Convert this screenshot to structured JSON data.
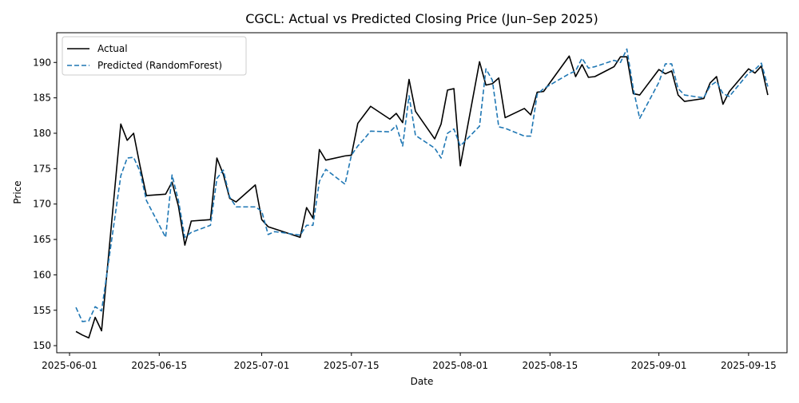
{
  "chart_data": {
    "type": "line",
    "title": "CGCL: Actual vs Predicted Closing Price (Jun–Sep 2025)",
    "xlabel": "Date",
    "ylabel": "Price",
    "xlim": [
      "2025-05-30",
      "2025-09-21"
    ],
    "ylim": [
      149,
      194.2
    ],
    "x_ticks": [
      "2025-06-01",
      "2025-06-15",
      "2025-07-01",
      "2025-07-15",
      "2025-08-01",
      "2025-08-15",
      "2025-09-01",
      "2025-09-15"
    ],
    "x_tick_labels": [
      "2025-06-01",
      "2025-06-15",
      "2025-07-01",
      "2025-07-15",
      "2025-08-01",
      "2025-08-15",
      "2025-09-01",
      "2025-09-15"
    ],
    "y_ticks": [
      150,
      155,
      160,
      165,
      170,
      175,
      180,
      185,
      190
    ],
    "y_tick_labels": [
      "150",
      "155",
      "160",
      "165",
      "170",
      "175",
      "180",
      "185",
      "190"
    ],
    "grid": false,
    "legend_position": "top-left",
    "x": [
      "2025-06-02",
      "2025-06-03",
      "2025-06-04",
      "2025-06-05",
      "2025-06-06",
      "2025-06-09",
      "2025-06-10",
      "2025-06-11",
      "2025-06-12",
      "2025-06-13",
      "2025-06-16",
      "2025-06-17",
      "2025-06-18",
      "2025-06-19",
      "2025-06-20",
      "2025-06-23",
      "2025-06-24",
      "2025-06-25",
      "2025-06-26",
      "2025-06-27",
      "2025-06-30",
      "2025-07-01",
      "2025-07-02",
      "2025-07-03",
      "2025-07-04",
      "2025-07-07",
      "2025-07-08",
      "2025-07-09",
      "2025-07-10",
      "2025-07-11",
      "2025-07-14",
      "2025-07-15",
      "2025-07-16",
      "2025-07-17",
      "2025-07-18",
      "2025-07-21",
      "2025-07-22",
      "2025-07-23",
      "2025-07-24",
      "2025-07-25",
      "2025-07-28",
      "2025-07-29",
      "2025-07-30",
      "2025-07-31",
      "2025-08-01",
      "2025-08-04",
      "2025-08-05",
      "2025-08-06",
      "2025-08-07",
      "2025-08-08",
      "2025-08-11",
      "2025-08-12",
      "2025-08-13",
      "2025-08-14",
      "2025-08-18",
      "2025-08-19",
      "2025-08-20",
      "2025-08-21",
      "2025-08-22",
      "2025-08-25",
      "2025-08-26",
      "2025-08-27",
      "2025-08-28",
      "2025-08-29",
      "2025-09-01",
      "2025-09-02",
      "2025-09-03",
      "2025-09-04",
      "2025-09-05",
      "2025-09-08",
      "2025-09-09",
      "2025-09-10",
      "2025-09-11",
      "2025-09-12",
      "2025-09-15",
      "2025-09-16",
      "2025-09-17",
      "2025-09-18"
    ],
    "series": [
      {
        "name": "Actual",
        "color": "#000000",
        "dash": "solid",
        "values": [
          152.0,
          151.5,
          151.1,
          154.0,
          152.1,
          181.3,
          179.0,
          180.0,
          175.4,
          171.2,
          171.4,
          173.1,
          169.7,
          164.2,
          167.6,
          167.8,
          176.5,
          174.2,
          170.8,
          170.3,
          172.7,
          167.8,
          166.8,
          166.5,
          166.2,
          165.3,
          169.5,
          168.0,
          177.7,
          176.2,
          176.8,
          176.9,
          181.4,
          182.6,
          183.8,
          182.0,
          182.8,
          181.5,
          187.6,
          183.1,
          179.2,
          181.3,
          186.1,
          186.3,
          175.4,
          190.1,
          186.8,
          187.0,
          187.8,
          182.2,
          183.5,
          182.6,
          185.8,
          185.9,
          190.9,
          188.0,
          189.7,
          187.9,
          188.0,
          189.4,
          190.8,
          190.8,
          185.6,
          185.4,
          189.0,
          188.4,
          188.8,
          185.4,
          184.5,
          184.9,
          187.1,
          188.0,
          184.1,
          185.9,
          189.1,
          188.5,
          189.5,
          185.4
        ]
      },
      {
        "name": "Predicted (RandomForest)",
        "color": "#1f77b4",
        "dash": "dashed",
        "values": [
          155.4,
          153.4,
          153.5,
          155.5,
          154.9,
          174.0,
          176.5,
          176.6,
          174.6,
          170.5,
          165.3,
          174.1,
          170.5,
          165.3,
          166.0,
          167.0,
          173.6,
          174.8,
          171.0,
          169.6,
          169.6,
          169.0,
          165.7,
          166.1,
          166.0,
          165.6,
          167.0,
          167.0,
          173.2,
          174.9,
          172.8,
          176.9,
          178.2,
          179.2,
          180.3,
          180.2,
          181.1,
          178.2,
          185.3,
          179.7,
          177.9,
          176.5,
          180.0,
          180.6,
          178.2,
          181.0,
          189.1,
          187.5,
          180.9,
          180.7,
          179.6,
          179.6,
          185.5,
          186.3,
          188.4,
          188.8,
          190.6,
          189.2,
          189.4,
          190.3,
          190.0,
          191.9,
          186.3,
          182.1,
          187.2,
          189.8,
          189.8,
          186.3,
          185.4,
          185.0,
          186.7,
          187.3,
          185.6,
          185.2,
          188.5,
          189.0,
          189.9,
          186.6
        ]
      }
    ]
  }
}
